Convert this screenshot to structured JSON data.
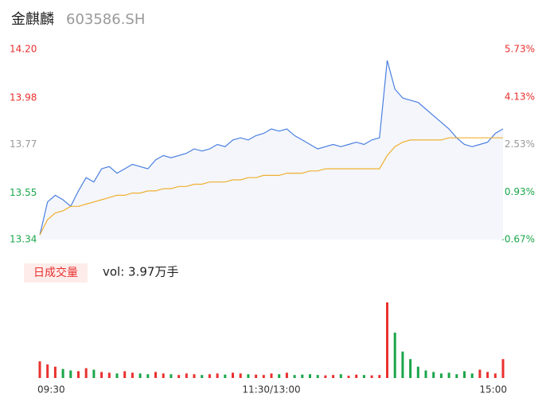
{
  "chart_data": {
    "type": "line",
    "title": "金麒麟",
    "subtitle": "603586.SH",
    "x": [
      0,
      4,
      8,
      12,
      16,
      20,
      24,
      28,
      32,
      36,
      40,
      44,
      48,
      52,
      56,
      60,
      64,
      68,
      72,
      76,
      80,
      84,
      88,
      92,
      96,
      100,
      104,
      108,
      112,
      116,
      120,
      124,
      128,
      132,
      136,
      140,
      144,
      148,
      152,
      156,
      160,
      164,
      168,
      172,
      176,
      180,
      184,
      188,
      192,
      196,
      200,
      204,
      208,
      212,
      216,
      220,
      224,
      228,
      232,
      236,
      240
    ],
    "xlim": [
      0,
      240
    ],
    "xticks": [
      {
        "value": 0,
        "label": "09:30"
      },
      {
        "value": 120,
        "label": "11:30/13:00"
      },
      {
        "value": 240,
        "label": "15:00"
      }
    ],
    "ylim": [
      13.34,
      14.2
    ],
    "yticks": [
      {
        "value": 14.2,
        "label": "14.20"
      },
      13.98,
      13.77,
      13.55,
      13.34
    ],
    "ytick_colors": [
      "#e8312f",
      "#e8312f",
      "#999999",
      "#1aa64a",
      "#1aa64a"
    ],
    "y2lim": [
      -0.67,
      5.73
    ],
    "y2ticks": [
      {
        "value": 5.73,
        "label": "5.73%"
      },
      {
        "value": 4.13,
        "label": "4.13%"
      },
      {
        "value": 2.53,
        "label": "2.53%"
      },
      {
        "value": 0.93,
        "label": "0.93%"
      },
      {
        "value": -0.67,
        "label": "-0.67%"
      }
    ],
    "series": [
      {
        "color": "#4a7fe0",
        "values": [
          13.36,
          13.51,
          13.54,
          13.52,
          13.49,
          13.56,
          13.62,
          13.6,
          13.66,
          13.67,
          13.64,
          13.66,
          13.68,
          13.67,
          13.66,
          13.7,
          13.72,
          13.71,
          13.72,
          13.73,
          13.75,
          13.74,
          13.75,
          13.77,
          13.76,
          13.79,
          13.8,
          13.79,
          13.81,
          13.82,
          13.84,
          13.83,
          13.84,
          13.81,
          13.79,
          13.77,
          13.75,
          13.76,
          13.77,
          13.76,
          13.77,
          13.78,
          13.77,
          13.79,
          13.8,
          14.15,
          14.02,
          13.98,
          13.97,
          13.96,
          13.93,
          13.9,
          13.87,
          13.84,
          13.8,
          13.77,
          13.76,
          13.77,
          13.78,
          13.82,
          13.84
        ]
      },
      {
        "color": "#f0b030",
        "values": [
          13.36,
          13.43,
          13.46,
          13.47,
          13.49,
          13.49,
          13.5,
          13.51,
          13.52,
          13.53,
          13.54,
          13.54,
          13.55,
          13.55,
          13.56,
          13.56,
          13.57,
          13.57,
          13.58,
          13.58,
          13.59,
          13.59,
          13.6,
          13.6,
          13.6,
          13.61,
          13.61,
          13.62,
          13.62,
          13.63,
          13.63,
          13.63,
          13.64,
          13.64,
          13.64,
          13.65,
          13.65,
          13.66,
          13.66,
          13.66,
          13.66,
          13.66,
          13.66,
          13.66,
          13.66,
          13.72,
          13.76,
          13.78,
          13.79,
          13.79,
          13.79,
          13.79,
          13.79,
          13.8,
          13.8,
          13.8,
          13.8,
          13.8,
          13.8,
          13.8,
          13.8
        ]
      }
    ],
    "volume": {
      "label": "日成交量",
      "summary": "vol: 3.97万手",
      "up_color": "#e8312f",
      "down_color": "#1aa64a",
      "values": [
        220,
        180,
        150,
        120,
        100,
        90,
        130,
        110,
        80,
        70,
        60,
        90,
        70,
        60,
        50,
        80,
        60,
        50,
        40,
        60,
        50,
        40,
        50,
        60,
        45,
        70,
        60,
        50,
        45,
        40,
        60,
        50,
        70,
        40,
        45,
        50,
        40,
        35,
        40,
        50,
        30,
        45,
        40,
        35,
        40,
        1000,
        600,
        350,
        250,
        150,
        100,
        80,
        60,
        70,
        50,
        90,
        60,
        110,
        80,
        60,
        250
      ]
    }
  }
}
